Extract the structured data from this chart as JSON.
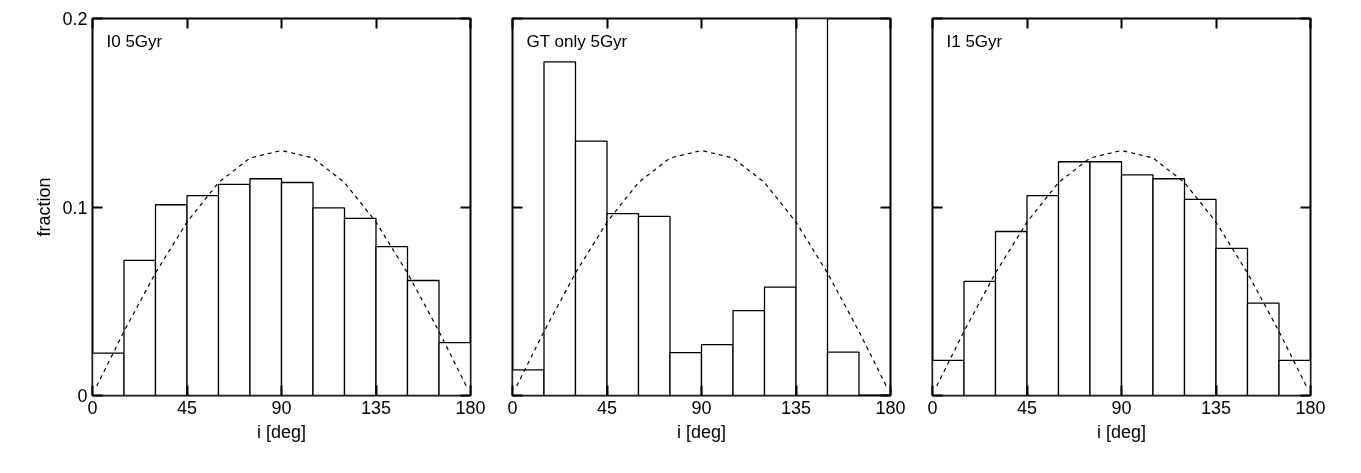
{
  "chart_data": [
    {
      "type": "histogram",
      "annotations": [
        "I0 5Gyr"
      ],
      "xlabel": "i [deg]",
      "ylabel": "fraction",
      "bins": [
        0,
        15,
        30,
        45,
        60,
        75,
        90,
        105,
        120,
        135,
        150,
        165,
        180
      ],
      "xlim": [
        0,
        180
      ],
      "xticks": [
        0,
        45,
        90,
        135,
        180
      ],
      "ylim": [
        0,
        0.2
      ],
      "yticks": [
        0,
        0.1,
        0.2
      ],
      "grid": false,
      "series": [
        {
          "color": "#000000",
          "values": [
            0.0225,
            0.0717,
            0.1012,
            0.106,
            0.112,
            0.115,
            0.113,
            0.0995,
            0.094,
            0.079,
            0.061,
            0.028
          ]
        },
        {
          "type": "line",
          "color": "#000000",
          "line_style": "dashed",
          "x": [
            2,
            15,
            30,
            45,
            60,
            75,
            90,
            105,
            120,
            135,
            150,
            165,
            178
          ],
          "values": [
            0.005,
            0.034,
            0.065,
            0.092,
            0.113,
            0.126,
            0.13,
            0.126,
            0.113,
            0.092,
            0.065,
            0.034,
            0.005
          ]
        }
      ]
    },
    {
      "type": "histogram",
      "annotations": [
        "GT only 5Gyr"
      ],
      "xlabel": "i [deg]",
      "tick_labels": "x",
      "bins": [
        0,
        15,
        30,
        45,
        60,
        75,
        90,
        105,
        120,
        135,
        150,
        165,
        180
      ],
      "xlim": [
        0,
        180
      ],
      "xticks": [
        0,
        45,
        90,
        135,
        180
      ],
      "ylim": [
        0,
        0.2
      ],
      "yticks": [
        0,
        0.1,
        0.2
      ],
      "grid": false,
      "series": [
        {
          "color": "#000000",
          "values": [
            0.0136,
            0.177,
            0.135,
            0.0965,
            0.095,
            0.0227,
            0.027,
            0.045,
            0.0575,
            0.2,
            0.023,
            0
          ]
        },
        {
          "type": "line",
          "color": "#000000",
          "line_style": "dashed",
          "x": [
            2,
            15,
            30,
            45,
            60,
            75,
            90,
            105,
            120,
            135,
            150,
            165,
            178
          ],
          "values": [
            0.005,
            0.034,
            0.065,
            0.092,
            0.113,
            0.126,
            0.13,
            0.126,
            0.113,
            0.092,
            0.065,
            0.034,
            0.005
          ]
        }
      ]
    },
    {
      "type": "histogram",
      "annotations": [
        "I1 5Gyr"
      ],
      "xlabel": "i [deg]",
      "tick_labels": "x",
      "bins": [
        0,
        15,
        30,
        45,
        60,
        75,
        90,
        105,
        120,
        135,
        150,
        165,
        180
      ],
      "xlim": [
        0,
        180
      ],
      "xticks": [
        0,
        45,
        90,
        135,
        180
      ],
      "ylim": [
        0,
        0.2
      ],
      "yticks": [
        0,
        0.1,
        0.2
      ],
      "grid": false,
      "series": [
        {
          "color": "#000000",
          "values": [
            0.0186,
            0.0605,
            0.087,
            0.106,
            0.124,
            0.124,
            0.117,
            0.115,
            0.104,
            0.078,
            0.049,
            0.0186
          ]
        },
        {
          "type": "line",
          "color": "#000000",
          "line_style": "dashed",
          "x": [
            2,
            15,
            30,
            45,
            60,
            75,
            90,
            105,
            120,
            135,
            150,
            165,
            178
          ],
          "values": [
            0.005,
            0.034,
            0.065,
            0.092,
            0.113,
            0.126,
            0.13,
            0.126,
            0.113,
            0.092,
            0.065,
            0.034,
            0.005
          ]
        }
      ]
    }
  ]
}
